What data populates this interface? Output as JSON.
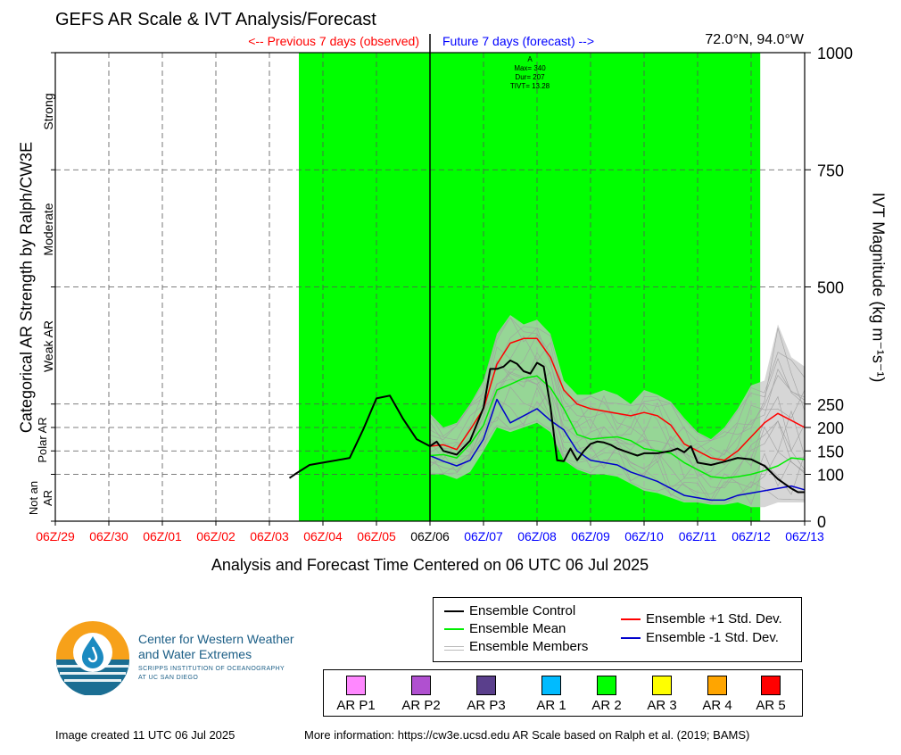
{
  "title": "GEFS AR Scale & IVT Analysis/Forecast",
  "prev_label": "<-- Previous 7 days (observed)",
  "future_label": "Future 7 days (forecast) -->",
  "location": "72.0°N, 94.0°W",
  "annotation": {
    "l1": "A",
    "l2": "Max= 340",
    "l3": "Dur= 207",
    "l4": "TIVT= 13.28"
  },
  "left_axis_title": "Categorical AR Strength by Ralph/CW3E",
  "category_labels": {
    "strong": "Strong",
    "moderate": "Moderate",
    "weak": "Weak AR",
    "polar": "Polar AR",
    "notar": "Not an AR"
  },
  "right_axis_title": "IVT Magnitude (kg m⁻¹s⁻¹)",
  "xlabel": "Analysis and Forecast Time Centered on 06 UTC 06 Jul 2025",
  "legend": {
    "control": "Ensemble Control",
    "mean": "Ensemble Mean",
    "members": "Ensemble Members",
    "plus": "Ensemble +1 Std. Dev.",
    "minus": "Ensemble -1 Std. Dev."
  },
  "ar_scale": [
    {
      "label": "AR P1",
      "color": "#ff88ff"
    },
    {
      "label": "AR P2",
      "color": "#b050d0"
    },
    {
      "label": "AR P3",
      "color": "#5a3f8c"
    },
    {
      "label": "AR 1",
      "color": "#00bbff"
    },
    {
      "label": "AR 2",
      "color": "#00ff00"
    },
    {
      "label": "AR 3",
      "color": "#ffff00"
    },
    {
      "label": "AR 4",
      "color": "#ffa500"
    },
    {
      "label": "AR 5",
      "color": "#ff0000"
    }
  ],
  "logo": {
    "name_l1": "Center for Western Weather",
    "name_l2": "and Water Extremes",
    "sub_l1": "SCRIPPS INSTITUTION OF OCEANOGRAPHY",
    "sub_l2": "AT UC SAN DIEGO"
  },
  "footer": {
    "created": "Image created 11 UTC 06 Jul 2025",
    "info": "More information: https://cw3e.ucsd.edu AR Scale based on Ralph et al. (2019; BAMS)"
  },
  "chart_data": {
    "type": "line",
    "xlim": [
      0,
      14
    ],
    "ylim": [
      0,
      1000
    ],
    "x_ticks": [
      {
        "x": 0,
        "label": "06Z/29",
        "color": "red"
      },
      {
        "x": 1,
        "label": "06Z/30",
        "color": "red"
      },
      {
        "x": 2,
        "label": "06Z/01",
        "color": "red"
      },
      {
        "x": 3,
        "label": "06Z/02",
        "color": "red"
      },
      {
        "x": 4,
        "label": "06Z/03",
        "color": "red"
      },
      {
        "x": 5,
        "label": "06Z/04",
        "color": "red"
      },
      {
        "x": 6,
        "label": "06Z/05",
        "color": "red"
      },
      {
        "x": 7,
        "label": "06Z/06",
        "color": "black"
      },
      {
        "x": 8,
        "label": "06Z/07",
        "color": "blue"
      },
      {
        "x": 9,
        "label": "06Z/08",
        "color": "blue"
      },
      {
        "x": 10,
        "label": "06Z/09",
        "color": "blue"
      },
      {
        "x": 11,
        "label": "06Z/10",
        "color": "blue"
      },
      {
        "x": 12,
        "label": "06Z/11",
        "color": "blue"
      },
      {
        "x": 13,
        "label": "06Z/12",
        "color": "blue"
      },
      {
        "x": 14,
        "label": "06Z/13",
        "color": "blue"
      }
    ],
    "y_ticks": [
      0,
      100,
      150,
      200,
      250,
      500,
      750,
      1000
    ],
    "category_bounds": [
      100,
      150,
      250,
      500,
      750
    ],
    "ar_shading": {
      "x_start": 4.55,
      "x_end": 13.17,
      "color": "#00ff00"
    },
    "now_x": 7,
    "grid": true,
    "series": [
      {
        "name": "Ensemble Control",
        "color": "#000000",
        "x": [
          4.375,
          4.5,
          4.75,
          5.0,
          5.25,
          5.5,
          5.75,
          6.0,
          6.25,
          6.5,
          6.75,
          7.0,
          7.125,
          7.25,
          7.5,
          7.75,
          8.0,
          8.125,
          8.25,
          8.375,
          8.5,
          8.625,
          8.75,
          8.875,
          9.0,
          9.125,
          9.25,
          9.375,
          9.5,
          9.625,
          9.75,
          9.875,
          10.0,
          10.125,
          10.25,
          10.375,
          10.5,
          10.625,
          10.75,
          10.875,
          11.0,
          11.25,
          11.5,
          11.625,
          11.75,
          11.875,
          12.0,
          12.25,
          12.5,
          12.75,
          13.0,
          13.25,
          13.5,
          13.75,
          13.875,
          14.0
        ],
        "y": [
          92,
          102,
          120,
          125,
          130,
          135,
          195,
          262,
          268,
          218,
          175,
          160,
          170,
          150,
          142,
          172,
          242,
          325,
          325,
          330,
          343,
          336,
          320,
          315,
          338,
          330,
          245,
          130,
          128,
          155,
          130,
          150,
          165,
          170,
          168,
          163,
          155,
          150,
          145,
          140,
          145,
          145,
          150,
          155,
          147,
          160,
          125,
          120,
          127,
          135,
          132,
          118,
          90,
          70,
          62,
          62
        ]
      },
      {
        "name": "Ensemble Mean",
        "color": "#00ee00",
        "x": [
          7.0,
          7.25,
          7.5,
          7.75,
          8.0,
          8.25,
          8.5,
          8.75,
          9.0,
          9.25,
          9.5,
          9.75,
          10.0,
          10.25,
          10.5,
          10.75,
          11.0,
          11.25,
          11.5,
          11.75,
          12.0,
          12.25,
          12.5,
          12.75,
          13.0,
          13.25,
          13.5,
          13.75,
          14.0
        ],
        "y": [
          140,
          142,
          135,
          165,
          205,
          280,
          292,
          305,
          310,
          285,
          240,
          185,
          175,
          178,
          180,
          172,
          155,
          150,
          145,
          125,
          110,
          95,
          92,
          95,
          100,
          108,
          118,
          135,
          132
        ]
      },
      {
        "name": "Ensemble +1 Std. Dev.",
        "color": "#ff0000",
        "x": [
          7.0,
          7.25,
          7.5,
          7.75,
          8.0,
          8.25,
          8.5,
          8.75,
          9.0,
          9.25,
          9.5,
          9.75,
          10.0,
          10.25,
          10.5,
          10.75,
          11.0,
          11.25,
          11.5,
          11.75,
          12.0,
          12.25,
          12.5,
          12.75,
          13.0,
          13.25,
          13.5,
          13.75,
          14.0
        ],
        "y": [
          160,
          163,
          153,
          195,
          240,
          335,
          380,
          390,
          390,
          350,
          280,
          250,
          240,
          235,
          230,
          225,
          232,
          225,
          205,
          165,
          150,
          135,
          130,
          150,
          180,
          210,
          230,
          215,
          200
        ]
      },
      {
        "name": "Ensemble -1 Std. Dev.",
        "color": "#0000cc",
        "x": [
          7.0,
          7.25,
          7.5,
          7.75,
          8.0,
          8.25,
          8.5,
          8.75,
          9.0,
          9.25,
          9.5,
          9.75,
          10.0,
          10.25,
          10.5,
          10.75,
          11.0,
          11.25,
          11.5,
          11.75,
          12.0,
          12.25,
          12.5,
          12.75,
          13.0,
          13.25,
          13.5,
          13.75,
          14.0
        ],
        "y": [
          140,
          128,
          118,
          130,
          175,
          260,
          210,
          225,
          240,
          215,
          195,
          150,
          130,
          125,
          120,
          105,
          95,
          85,
          70,
          55,
          50,
          45,
          45,
          55,
          60,
          65,
          70,
          75,
          67
        ]
      }
    ],
    "members_band": {
      "x": [
        7.0,
        7.25,
        7.5,
        7.75,
        8.0,
        8.25,
        8.5,
        8.75,
        9.0,
        9.25,
        9.5,
        9.75,
        10.0,
        10.25,
        10.5,
        10.75,
        11.0,
        11.25,
        11.5,
        11.75,
        12.0,
        12.25,
        12.5,
        12.75,
        13.0,
        13.25,
        13.5,
        13.75,
        14.0
      ],
      "lo": [
        100,
        100,
        90,
        105,
        150,
        200,
        190,
        200,
        210,
        190,
        130,
        110,
        100,
        100,
        95,
        80,
        65,
        60,
        50,
        40,
        40,
        35,
        35,
        40,
        30,
        30,
        40,
        40,
        40
      ],
      "hi": [
        230,
        200,
        210,
        250,
        300,
        400,
        440,
        420,
        430,
        400,
        300,
        270,
        270,
        280,
        270,
        250,
        280,
        270,
        255,
        220,
        190,
        175,
        200,
        240,
        290,
        300,
        420,
        350,
        330
      ]
    }
  }
}
